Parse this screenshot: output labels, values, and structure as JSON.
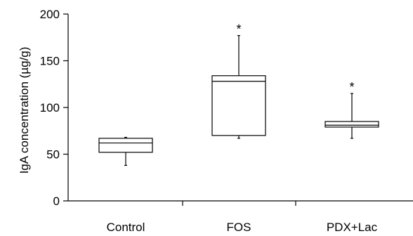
{
  "chart_data": {
    "type": "box",
    "xlabel": "",
    "ylabel": "IgA concentration (µg/g)",
    "ylim": [
      0,
      200
    ],
    "yticks": [
      0,
      50,
      100,
      150,
      200
    ],
    "grid": false,
    "categories": [
      "Control",
      "FOS",
      "PDX+Lac"
    ],
    "boxes": [
      {
        "category": "Control",
        "min": 38,
        "q1": 52,
        "median": 62,
        "q3": 67,
        "max": 68,
        "annotation": ""
      },
      {
        "category": "FOS",
        "min": 67,
        "q1": 70,
        "median": 128,
        "q3": 134,
        "max": 177,
        "annotation": "*"
      },
      {
        "category": "PDX+Lac",
        "min": 67,
        "q1": 79,
        "median": 81,
        "q3": 85,
        "max": 115,
        "annotation": "*"
      }
    ]
  }
}
